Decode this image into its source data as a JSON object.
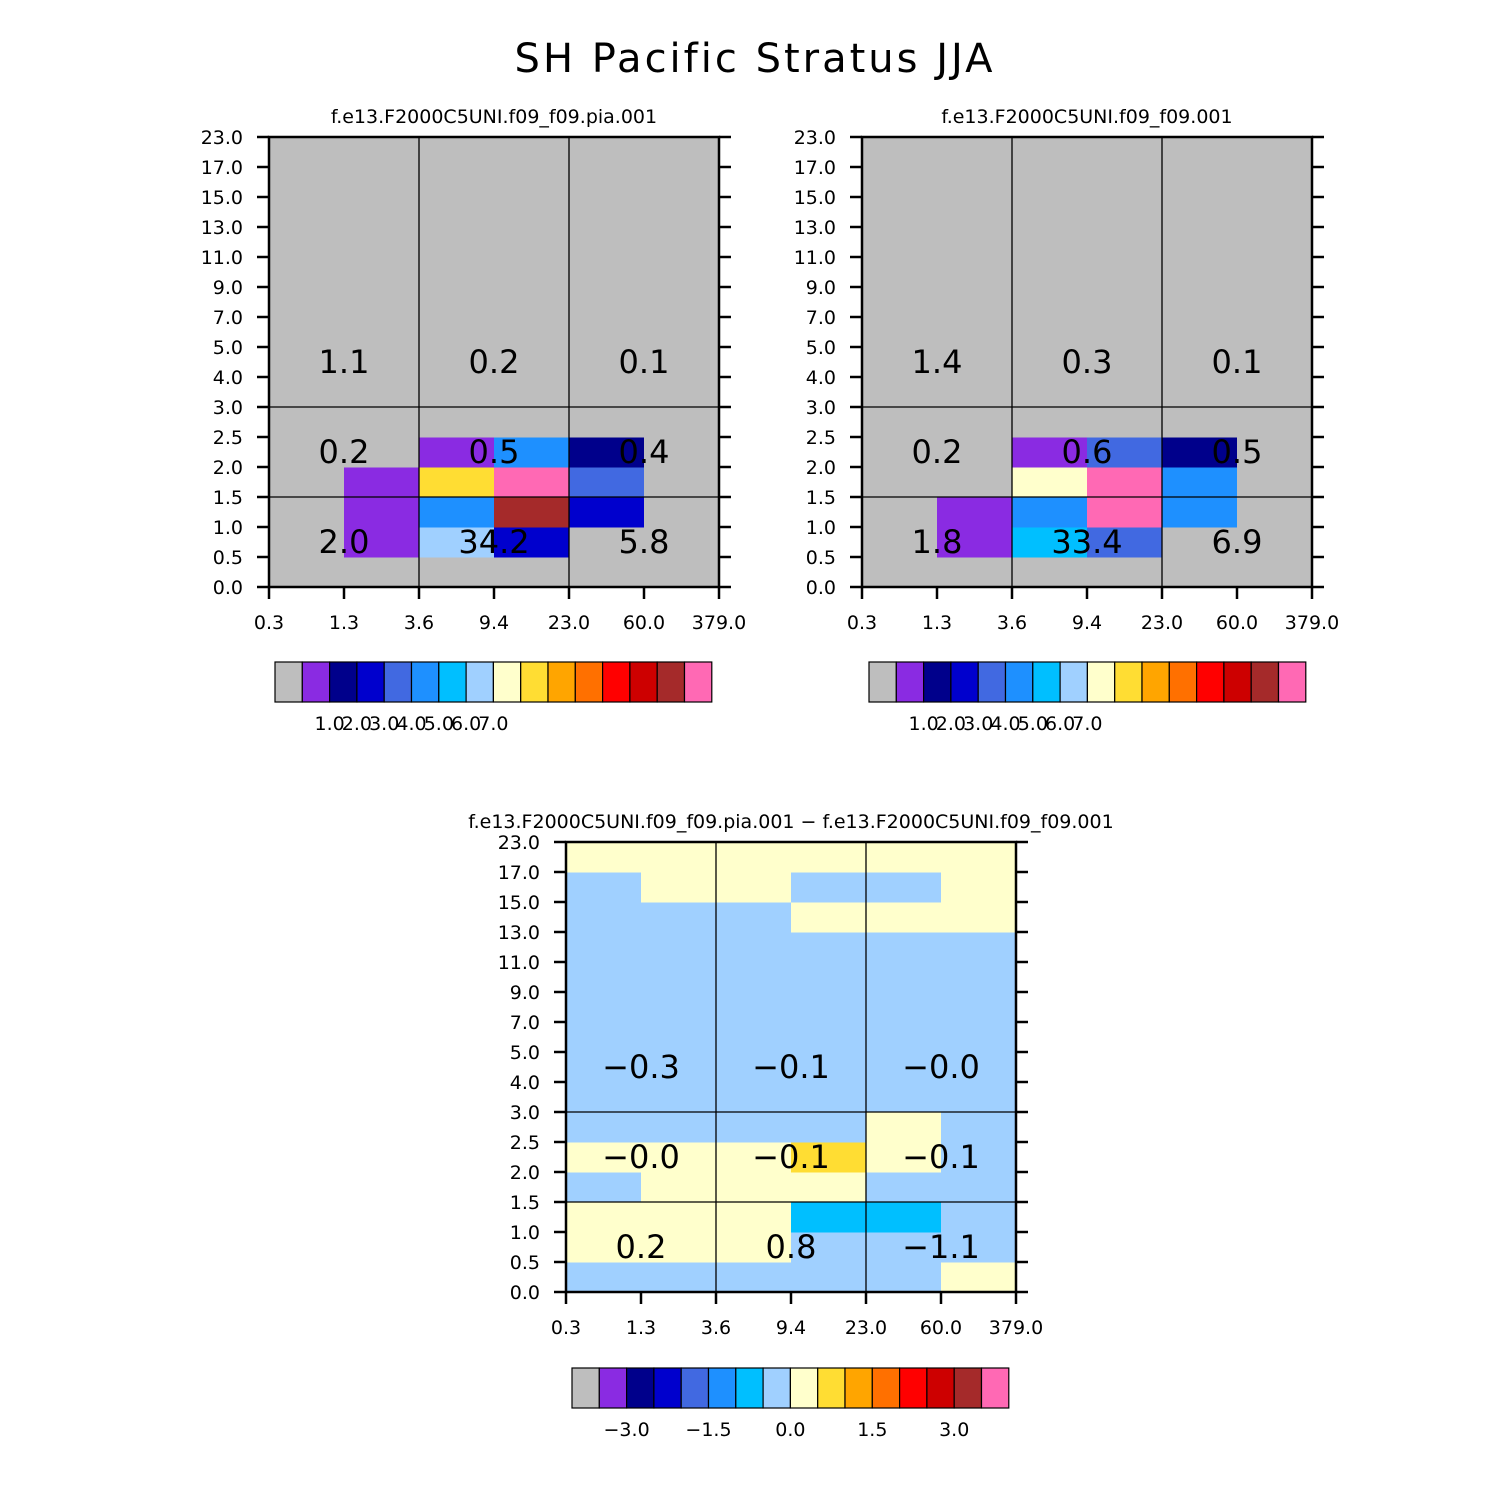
{
  "title": "SH Pacific Stratus JJA",
  "colors": {
    "palette": [
      "#bebebe",
      "#8a2be2",
      "#00008b",
      "#0000cd",
      "#4169e1",
      "#1e90ff",
      "#00bfff",
      "#a0d0ff",
      "#ffffcc",
      "#ffdd33",
      "#ffa500",
      "#ff7000",
      "#ff0000",
      "#cd0000",
      "#a52a2a",
      "#ff69b4"
    ],
    "grid_line": "#000000",
    "missing": "#bebebe"
  },
  "chart_data": [
    {
      "type": "heatmap",
      "title": "f.e13.F2000C5UNI.f09_f09.pia.001",
      "x_ticks": [
        "0.3",
        "1.3",
        "3.6",
        "9.4",
        "23.0",
        "60.0",
        "379.0"
      ],
      "y_ticks": [
        "0.0",
        "0.5",
        "1.0",
        "1.5",
        "2.0",
        "2.5",
        "3.0",
        "4.0",
        "5.0",
        "7.0",
        "9.0",
        "11.0",
        "13.0",
        "15.0",
        "17.0",
        "23.0"
      ],
      "cells": [
        [
          0,
          0,
          0,
          0,
          0,
          0
        ],
        [
          0,
          1,
          7,
          3,
          0,
          0
        ],
        [
          0,
          1,
          5,
          14,
          3,
          0
        ],
        [
          0,
          1,
          9,
          15,
          4,
          0
        ],
        [
          0,
          0,
          1,
          5,
          2,
          0
        ],
        [
          0,
          0,
          0,
          0,
          0,
          0
        ],
        [
          0,
          0,
          0,
          0,
          0,
          0
        ],
        [
          0,
          0,
          0,
          0,
          0,
          0
        ],
        [
          0,
          0,
          0,
          0,
          0,
          0
        ],
        [
          0,
          0,
          0,
          0,
          0,
          0
        ],
        [
          0,
          0,
          0,
          0,
          0,
          0
        ],
        [
          0,
          0,
          0,
          0,
          0,
          0
        ],
        [
          0,
          0,
          0,
          0,
          0,
          0
        ],
        [
          0,
          0,
          0,
          0,
          0,
          0
        ],
        [
          0,
          0,
          0,
          0,
          0,
          0
        ]
      ],
      "block_values": [
        {
          "label": "2.0",
          "col": 0,
          "row": 0
        },
        {
          "label": "34.2",
          "col": 1,
          "row": 0
        },
        {
          "label": "5.8",
          "col": 2,
          "row": 0
        },
        {
          "label": "0.2",
          "col": 0,
          "row": 1
        },
        {
          "label": "0.5",
          "col": 1,
          "row": 1
        },
        {
          "label": "0.4",
          "col": 2,
          "row": 1
        },
        {
          "label": "1.1",
          "col": 0,
          "row": 2
        },
        {
          "label": "0.2",
          "col": 1,
          "row": 2
        },
        {
          "label": "0.1",
          "col": 2,
          "row": 2
        }
      ],
      "colorbar": {
        "labels": [
          "1.0",
          "2.0",
          "3.0",
          "4.0",
          "5.0",
          "6.0",
          "7.0"
        ],
        "first_label_boundary": 2
      }
    },
    {
      "type": "heatmap",
      "title": "f.e13.F2000C5UNI.f09_f09.001",
      "x_ticks": [
        "0.3",
        "1.3",
        "3.6",
        "9.4",
        "23.0",
        "60.0",
        "379.0"
      ],
      "y_ticks": [
        "0.0",
        "0.5",
        "1.0",
        "1.5",
        "2.0",
        "2.5",
        "3.0",
        "4.0",
        "5.0",
        "7.0",
        "9.0",
        "11.0",
        "13.0",
        "15.0",
        "17.0",
        "23.0"
      ],
      "cells": [
        [
          0,
          0,
          0,
          0,
          0,
          0
        ],
        [
          0,
          1,
          6,
          4,
          0,
          0
        ],
        [
          0,
          1,
          5,
          15,
          5,
          0
        ],
        [
          0,
          0,
          8,
          15,
          5,
          0
        ],
        [
          0,
          0,
          1,
          4,
          2,
          0
        ],
        [
          0,
          0,
          0,
          0,
          0,
          0
        ],
        [
          0,
          0,
          0,
          0,
          0,
          0
        ],
        [
          0,
          0,
          0,
          0,
          0,
          0
        ],
        [
          0,
          0,
          0,
          0,
          0,
          0
        ],
        [
          0,
          0,
          0,
          0,
          0,
          0
        ],
        [
          0,
          0,
          0,
          0,
          0,
          0
        ],
        [
          0,
          0,
          0,
          0,
          0,
          0
        ],
        [
          0,
          0,
          0,
          0,
          0,
          0
        ],
        [
          0,
          0,
          0,
          0,
          0,
          0
        ],
        [
          0,
          0,
          0,
          0,
          0,
          0
        ]
      ],
      "block_values": [
        {
          "label": "1.8",
          "col": 0,
          "row": 0
        },
        {
          "label": "33.4",
          "col": 1,
          "row": 0
        },
        {
          "label": "6.9",
          "col": 2,
          "row": 0
        },
        {
          "label": "0.2",
          "col": 0,
          "row": 1
        },
        {
          "label": "0.6",
          "col": 1,
          "row": 1
        },
        {
          "label": "0.5",
          "col": 2,
          "row": 1
        },
        {
          "label": "1.4",
          "col": 0,
          "row": 2
        },
        {
          "label": "0.3",
          "col": 1,
          "row": 2
        },
        {
          "label": "0.1",
          "col": 2,
          "row": 2
        }
      ],
      "colorbar": {
        "labels": [
          "1.0",
          "2.0",
          "3.0",
          "4.0",
          "5.0",
          "6.0",
          "7.0"
        ],
        "first_label_boundary": 2
      }
    },
    {
      "type": "heatmap",
      "title": "f.e13.F2000C5UNI.f09_f09.pia.001 − f.e13.F2000C5UNI.f09_f09.001",
      "x_ticks": [
        "0.3",
        "1.3",
        "3.6",
        "9.4",
        "23.0",
        "60.0",
        "379.0"
      ],
      "y_ticks": [
        "0.0",
        "0.5",
        "1.0",
        "1.5",
        "2.0",
        "2.5",
        "3.0",
        "4.0",
        "5.0",
        "7.0",
        "9.0",
        "11.0",
        "13.0",
        "15.0",
        "17.0",
        "23.0"
      ],
      "cells": [
        [
          7,
          7,
          7,
          7,
          7,
          8
        ],
        [
          8,
          8,
          8,
          7,
          7,
          7
        ],
        [
          8,
          8,
          8,
          6,
          6,
          7
        ],
        [
          7,
          8,
          8,
          8,
          7,
          7
        ],
        [
          8,
          8,
          8,
          9,
          8,
          7
        ],
        [
          7,
          7,
          7,
          7,
          8,
          7
        ],
        [
          7,
          7,
          7,
          7,
          7,
          7
        ],
        [
          7,
          7,
          7,
          7,
          7,
          7
        ],
        [
          7,
          7,
          7,
          7,
          7,
          7
        ],
        [
          7,
          7,
          7,
          7,
          7,
          7
        ],
        [
          7,
          7,
          7,
          7,
          7,
          7
        ],
        [
          7,
          7,
          7,
          7,
          7,
          7
        ],
        [
          7,
          7,
          7,
          8,
          8,
          8
        ],
        [
          7,
          8,
          8,
          7,
          7,
          8
        ],
        [
          8,
          8,
          8,
          8,
          8,
          8
        ]
      ],
      "block_values": [
        {
          "label": "0.2",
          "col": 0,
          "row": 0
        },
        {
          "label": "0.8",
          "col": 1,
          "row": 0
        },
        {
          "label": "−1.1",
          "col": 2,
          "row": 0
        },
        {
          "label": "−0.0",
          "col": 0,
          "row": 1
        },
        {
          "label": "−0.1",
          "col": 1,
          "row": 1
        },
        {
          "label": "−0.1",
          "col": 2,
          "row": 1
        },
        {
          "label": "−0.3",
          "col": 0,
          "row": 2
        },
        {
          "label": "−0.1",
          "col": 1,
          "row": 2
        },
        {
          "label": "−0.0",
          "col": 2,
          "row": 2
        }
      ],
      "colorbar": {
        "labels": [
          "−3.0",
          "−1.5",
          "0.0",
          "1.5",
          "3.0"
        ],
        "first_label_boundary": 2,
        "label_step": 3
      }
    }
  ]
}
